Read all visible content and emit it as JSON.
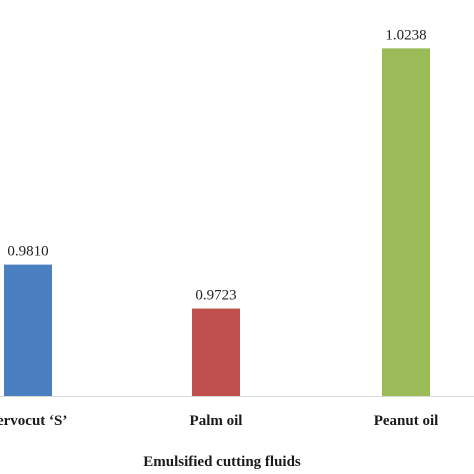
{
  "chart_data": {
    "type": "bar",
    "title": "",
    "xlabel": "Emulsified cutting fluids",
    "ylabel": "",
    "categories": [
      "Servocut ‘S’",
      "Palm oil",
      "Peanut oil"
    ],
    "values": [
      0.981,
      0.9723,
      1.0238
    ],
    "value_labels": [
      "0.9810",
      "0.9723",
      "1.0238"
    ],
    "colors": [
      "#4a7fc1",
      "#c0504d",
      "#9bbb59"
    ],
    "ylim": [
      0.955,
      1.03
    ],
    "grid": false,
    "legend": "none"
  }
}
